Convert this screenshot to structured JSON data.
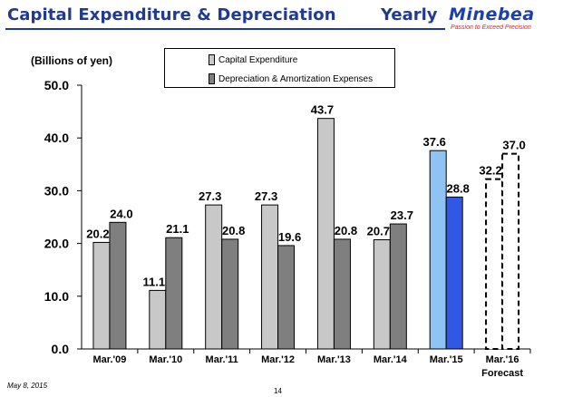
{
  "header": {
    "title": "Capital Expenditure & Depreciation",
    "period": "Yearly",
    "logo_name": "Minebea",
    "logo_tagline": "Passion to Exceed Precision"
  },
  "footer": {
    "date": "May 8, 2015",
    "page_number": "14"
  },
  "colors": {
    "title": "#1f3a93",
    "capex": "#c8c8c8",
    "depreciation": "#7f7f7f",
    "capex_highlight": "#8ec3f3",
    "depreciation_highlight": "#3158e5",
    "forecast_fill": "#ffffff"
  },
  "chart_data": {
    "type": "bar",
    "title": "",
    "ylabel": "(Billions of yen)",
    "xlabel": "",
    "ylim": [
      0,
      50
    ],
    "yticks": [
      "0.0",
      "10.0",
      "20.0",
      "30.0",
      "40.0",
      "50.0"
    ],
    "grid": false,
    "legend_position": "top",
    "categories": [
      "Mar.'09",
      "Mar.'10",
      "Mar.'11",
      "Mar.'12",
      "Mar.'13",
      "Mar.'14",
      "Mar.'15",
      "Mar.'16"
    ],
    "category_notes": [
      "",
      "",
      "",
      "",
      "",
      "",
      "",
      "Forecast"
    ],
    "series": [
      {
        "name": "Capital Expenditure",
        "values": [
          20.2,
          11.1,
          27.3,
          27.3,
          43.7,
          20.7,
          37.6,
          32.2
        ],
        "labels": [
          "20.2",
          "11.1",
          "27.3",
          "27.3",
          "43.7",
          "20.7",
          "37.6",
          "32.2"
        ]
      },
      {
        "name": "Depreciation & Amortization Expenses",
        "values": [
          24.0,
          21.1,
          20.8,
          19.6,
          20.8,
          23.7,
          28.8,
          37.0
        ],
        "labels": [
          "24.0",
          "21.1",
          "20.8",
          "19.6",
          "20.8",
          "23.7",
          "28.8",
          "37.0"
        ]
      }
    ]
  }
}
